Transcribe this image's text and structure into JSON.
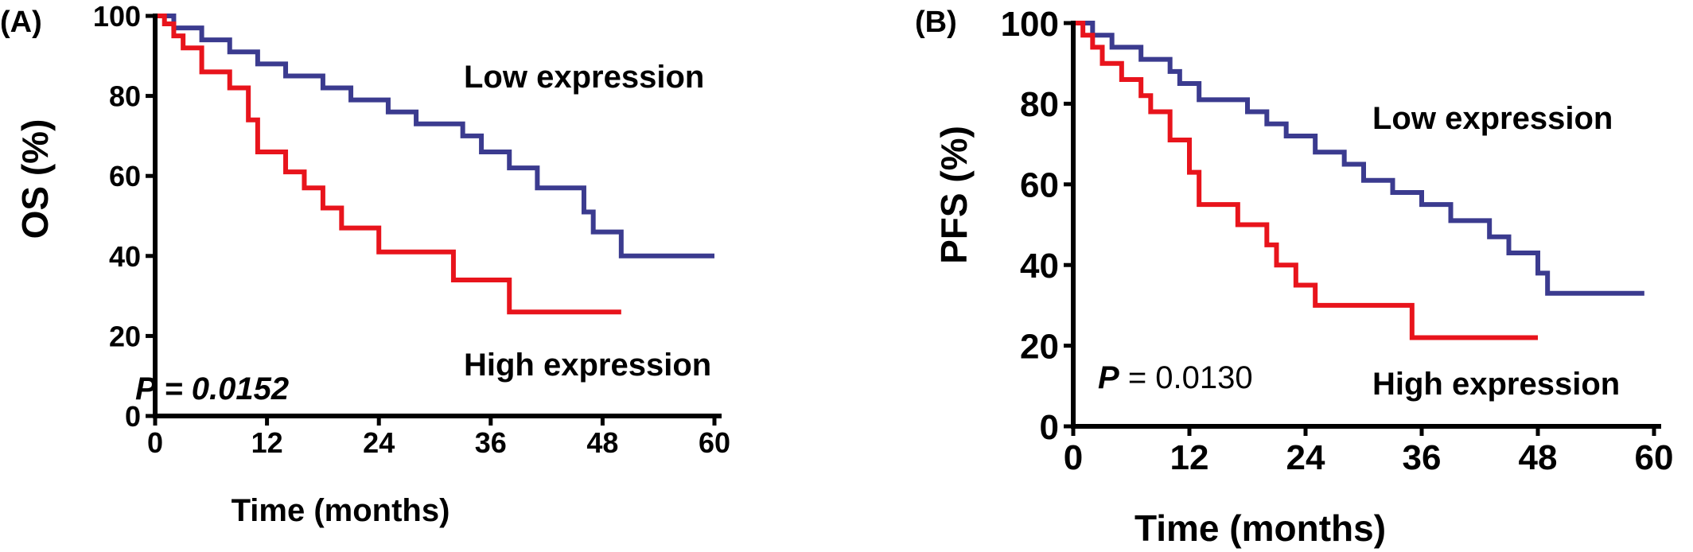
{
  "chart_data": [
    {
      "type": "line",
      "panel_label": "(A)",
      "xlabel": "Time (months)",
      "ylabel": "OS (%)",
      "xlim": [
        0,
        60
      ],
      "ylim": [
        0,
        100
      ],
      "xticks": [
        0,
        12,
        24,
        36,
        48,
        60
      ],
      "yticks": [
        0,
        20,
        40,
        60,
        80,
        100
      ],
      "grid": false,
      "series": [
        {
          "name": "Low expression",
          "color": "#3b3b8f",
          "step": true,
          "x": [
            0,
            2,
            5,
            8,
            11,
            14,
            18,
            21,
            25,
            28,
            33,
            35,
            38,
            41,
            46,
            47,
            50,
            60
          ],
          "y": [
            100,
            97,
            94,
            91,
            88,
            85,
            82,
            79,
            76,
            73,
            70,
            66,
            62,
            57,
            51,
            46,
            40,
            40
          ]
        },
        {
          "name": "High expression",
          "color": "#e8141c",
          "step": true,
          "x": [
            0,
            1,
            2,
            3,
            5,
            8,
            10,
            11,
            14,
            16,
            18,
            20,
            24,
            32,
            38,
            50
          ],
          "y": [
            100,
            98,
            95,
            92,
            86,
            82,
            74,
            66,
            61,
            57,
            52,
            47,
            41,
            34,
            26,
            26
          ]
        }
      ],
      "annotations": {
        "p_label": "P",
        "p_value": "= 0.0152",
        "low_label": "Low expression",
        "high_label": "High expression"
      }
    },
    {
      "type": "line",
      "panel_label": "(B)",
      "xlabel": "Time (months)",
      "ylabel": "PFS (%)",
      "xlim": [
        0,
        60
      ],
      "ylim": [
        0,
        100
      ],
      "xticks": [
        0,
        12,
        24,
        36,
        48,
        60
      ],
      "yticks": [
        0,
        20,
        40,
        60,
        80,
        100
      ],
      "grid": false,
      "series": [
        {
          "name": "Low expression",
          "color": "#3b3b8f",
          "step": true,
          "x": [
            0,
            2,
            4,
            7,
            10,
            11,
            13,
            18,
            20,
            22,
            25,
            28,
            30,
            33,
            36,
            39,
            43,
            45,
            48,
            49,
            59
          ],
          "y": [
            100,
            97,
            94,
            91,
            88,
            85,
            81,
            78,
            75,
            72,
            68,
            65,
            61,
            58,
            55,
            51,
            47,
            43,
            38,
            33,
            33
          ]
        },
        {
          "name": "High expression",
          "color": "#e8141c",
          "step": true,
          "x": [
            0,
            1,
            2,
            3,
            5,
            7,
            8,
            10,
            12,
            13,
            17,
            20,
            21,
            23,
            25,
            35,
            48
          ],
          "y": [
            100,
            97,
            94,
            90,
            86,
            82,
            78,
            71,
            63,
            55,
            50,
            45,
            40,
            35,
            30,
            22,
            22
          ]
        }
      ],
      "annotations": {
        "p_label": "P",
        "p_value": "= 0.0130",
        "low_label": "Low expression",
        "high_label": "High expression"
      }
    }
  ]
}
